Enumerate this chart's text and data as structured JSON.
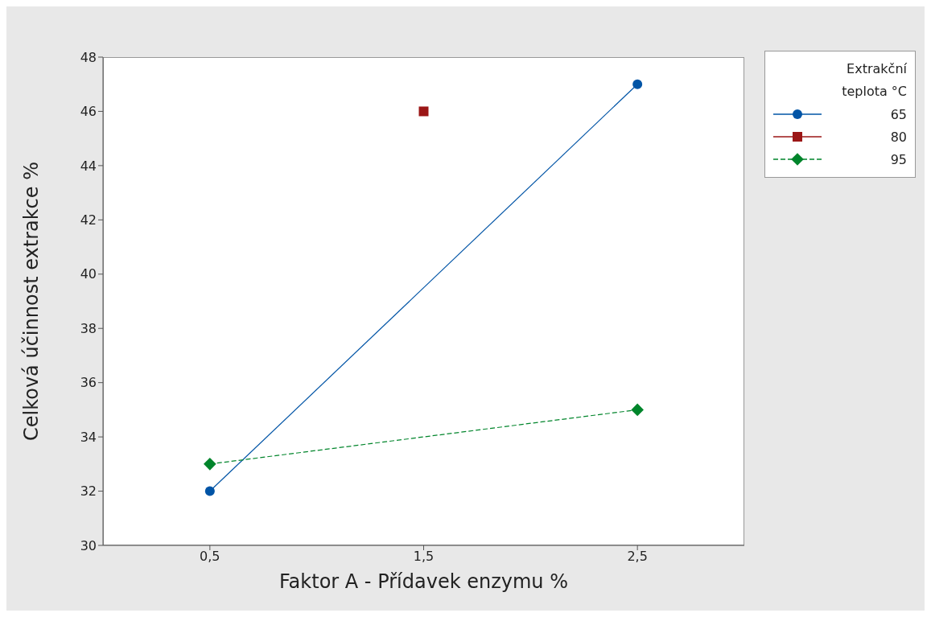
{
  "chart_data": {
    "type": "line",
    "xlabel": "Faktor A - Přídavek enzymu %",
    "ylabel": "Celková účinnost extrakce %",
    "legend_title": "Extrakční teplota °C",
    "categories": [
      "0,5",
      "1,5",
      "2,5"
    ],
    "ylim": [
      30,
      48
    ],
    "yticks": [
      30,
      32,
      34,
      36,
      38,
      40,
      42,
      44,
      46,
      48
    ],
    "grid": false,
    "legend": "right",
    "series": [
      {
        "name": "65",
        "color": "#0054a6",
        "values": [
          32,
          null,
          47
        ],
        "marker": "circle",
        "line_style": "solid"
      },
      {
        "name": "80",
        "color": "#9b1616",
        "values": [
          null,
          46,
          null
        ],
        "marker": "square",
        "line_style": "solid"
      },
      {
        "name": "95",
        "color": "#00852b",
        "values": [
          33,
          null,
          35
        ],
        "marker": "diamond",
        "line_style": "dashed"
      }
    ]
  }
}
